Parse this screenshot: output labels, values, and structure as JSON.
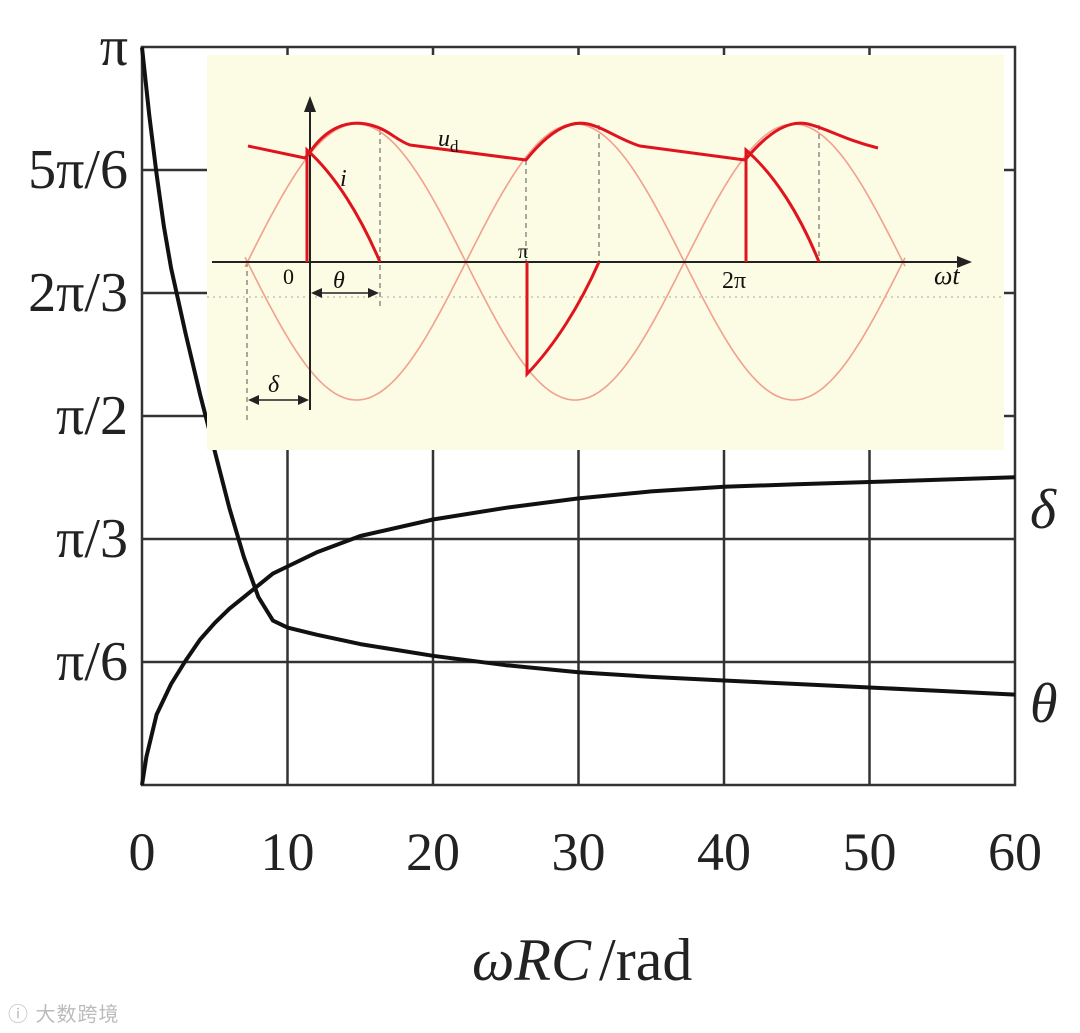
{
  "chart_data": {
    "type": "line",
    "title": "",
    "xlabel_italic": "ωRC",
    "xlabel_unit": "/rad",
    "xlim": [
      0,
      60
    ],
    "ylim": [
      0,
      3.14159
    ],
    "x_ticks": [
      0,
      10,
      20,
      30,
      40,
      50,
      60
    ],
    "x_tick_labels": [
      "0",
      "10",
      "20",
      "30",
      "40",
      "50",
      "60"
    ],
    "y_ticks": [
      0.5236,
      1.0472,
      1.5708,
      2.0944,
      2.618,
      3.14159
    ],
    "y_tick_labels": [
      "π/6",
      "π/3",
      "π/2",
      "2π/3",
      "5π/6",
      "π"
    ],
    "grid": true,
    "series": [
      {
        "name": "δ",
        "x": [
          0,
          0.3,
          1,
          2,
          3,
          4,
          5,
          6,
          7,
          8,
          9,
          10,
          12,
          15,
          20,
          25,
          30,
          35,
          40,
          45,
          50,
          55,
          60
        ],
        "y": [
          0.0,
          0.12,
          0.3,
          0.43,
          0.53,
          0.62,
          0.69,
          0.75,
          0.8,
          0.85,
          0.9,
          0.93,
          0.99,
          1.06,
          1.13,
          1.18,
          1.22,
          1.25,
          1.27,
          1.28,
          1.29,
          1.3,
          1.31
        ]
      },
      {
        "name": "θ",
        "x": [
          0,
          0.5,
          1,
          1.5,
          2,
          3,
          4,
          5,
          6,
          7,
          8,
          9,
          10,
          12,
          15,
          20,
          25,
          30,
          35,
          40,
          45,
          50,
          55,
          60
        ],
        "y": [
          3.14,
          2.85,
          2.6,
          2.38,
          2.2,
          1.92,
          1.66,
          1.42,
          1.18,
          0.97,
          0.8,
          0.7,
          0.67,
          0.64,
          0.6,
          0.55,
          0.51,
          0.48,
          0.46,
          0.445,
          0.43,
          0.415,
          0.4,
          0.385
        ]
      }
    ],
    "inset": {
      "labels": {
        "ud": "u",
        "ud_sub": "d",
        "i": "i",
        "zero": "0",
        "pi": "π",
        "two_pi": "2π",
        "omega_t": "ωt",
        "theta": "θ",
        "delta": "δ"
      }
    }
  }
}
